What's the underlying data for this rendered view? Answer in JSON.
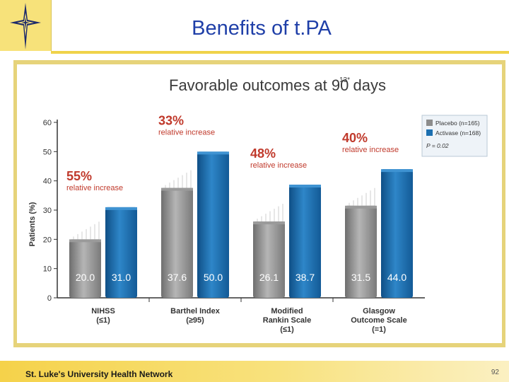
{
  "slide": {
    "title": "Benefits of t.PA",
    "footer": "St. Luke's University Health Network",
    "page_number": "92"
  },
  "colors": {
    "title": "#1f3fa8",
    "placebo": "#8c8c8c",
    "activase": "#1b6fb0",
    "increase_text": "#c0392b",
    "frame": "#e6d37a"
  },
  "chart_data": {
    "type": "bar",
    "title": "Favorable outcomes at 90 days",
    "title_superscript": "13*",
    "ylabel": "Patients (%)",
    "ylim": [
      0,
      60
    ],
    "yticks": [
      0,
      10,
      20,
      30,
      40,
      50,
      60
    ],
    "categories": [
      {
        "lines": [
          "NIHSS",
          "(≤1)"
        ]
      },
      {
        "lines": [
          "Barthel Index",
          "(≥95)"
        ]
      },
      {
        "lines": [
          "Modified",
          "Rankin Scale",
          "(≤1)"
        ]
      },
      {
        "lines": [
          "Glasgow",
          "Outcome Scale",
          "(=1)"
        ]
      }
    ],
    "series": [
      {
        "name": "Placebo (n=165)",
        "values": [
          20.0,
          37.6,
          26.1,
          31.5
        ],
        "labels": [
          "20.0",
          "37.6",
          "26.1",
          "31.5"
        ]
      },
      {
        "name": "Activase (n=168)",
        "values": [
          31.0,
          50.0,
          38.7,
          44.0
        ],
        "labels": [
          "31.0",
          "50.0",
          "38.7",
          "44.0"
        ]
      }
    ],
    "relative_increase": [
      {
        "percent": "55%",
        "text": "relative increase"
      },
      {
        "percent": "33%",
        "text": "relative increase"
      },
      {
        "percent": "48%",
        "text": "relative increase"
      },
      {
        "percent": "40%",
        "text": "relative increase"
      }
    ],
    "legend_note": "P = 0.02"
  }
}
